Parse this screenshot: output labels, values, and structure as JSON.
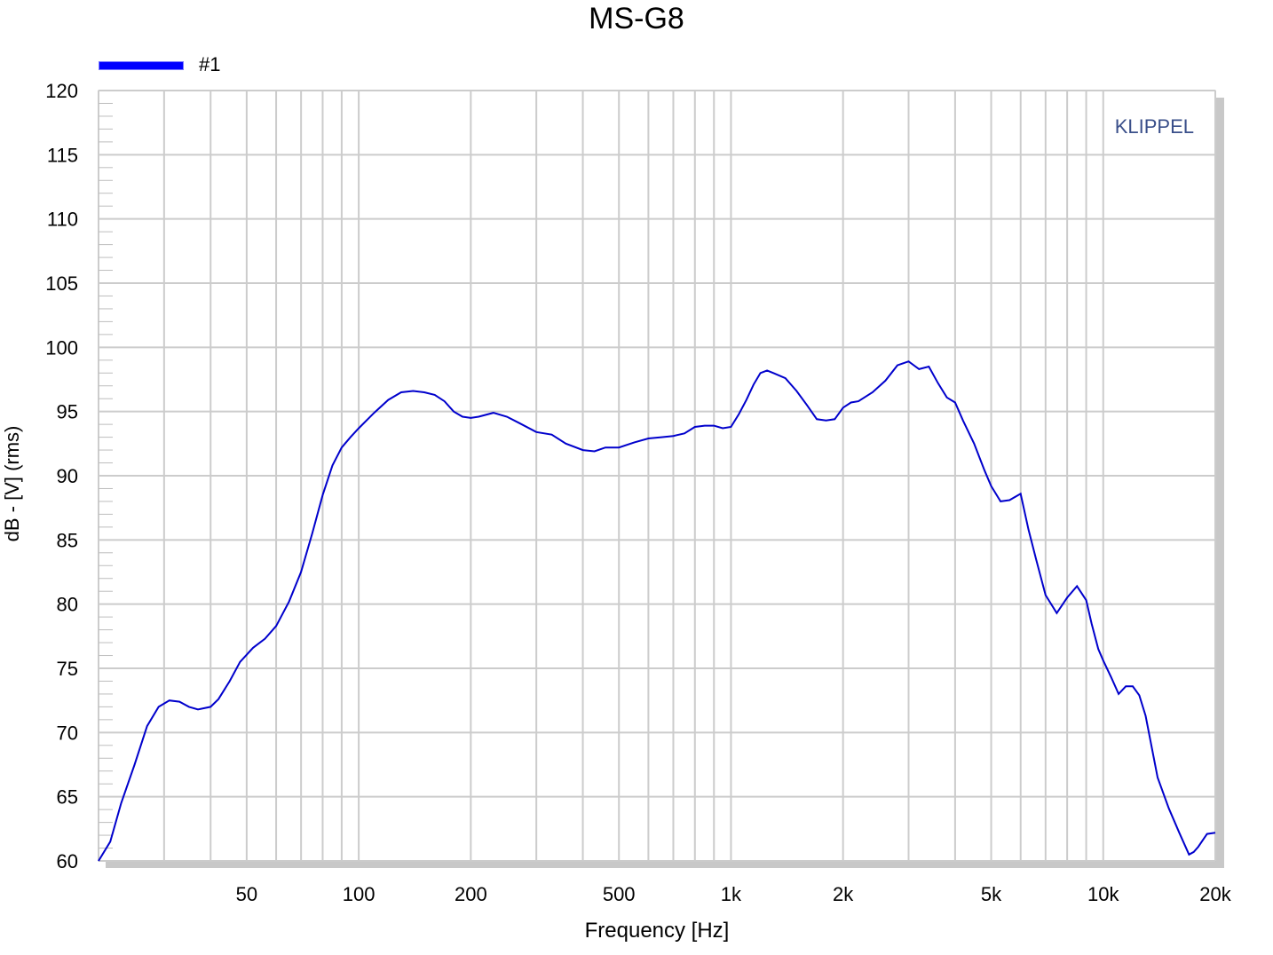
{
  "chart_data": {
    "type": "line",
    "title": "MS-G8",
    "xlabel": "Frequency [Hz]",
    "ylabel": "dB - [V]  (rms)",
    "x_scale": "log",
    "xlim": [
      20,
      20000
    ],
    "ylim": [
      60,
      120
    ],
    "x_ticks": [
      {
        "value": 50,
        "label": "50"
      },
      {
        "value": 100,
        "label": "100"
      },
      {
        "value": 200,
        "label": "200"
      },
      {
        "value": 500,
        "label": "500"
      },
      {
        "value": 1000,
        "label": "1k"
      },
      {
        "value": 2000,
        "label": "2k"
      },
      {
        "value": 5000,
        "label": "5k"
      },
      {
        "value": 10000,
        "label": "10k"
      },
      {
        "value": 20000,
        "label": "20k"
      }
    ],
    "y_ticks": [
      120,
      115,
      110,
      105,
      100,
      95,
      90,
      85,
      80,
      75,
      70,
      65,
      60
    ],
    "grid": true,
    "legend_position": "top-left",
    "watermark": "KLIPPEL",
    "series": [
      {
        "name": "#1",
        "color": "#0000cc",
        "x": [
          20,
          21.5,
          23,
          25,
          27,
          29,
          31,
          33,
          35,
          37,
          40,
          42,
          45,
          48,
          52,
          56,
          60,
          65,
          70,
          75,
          80,
          85,
          90,
          95,
          100,
          110,
          120,
          130,
          140,
          150,
          160,
          170,
          180,
          190,
          200,
          210,
          230,
          250,
          270,
          300,
          330,
          360,
          400,
          430,
          460,
          500,
          550,
          600,
          650,
          700,
          750,
          800,
          850,
          900,
          950,
          1000,
          1050,
          1100,
          1150,
          1200,
          1250,
          1300,
          1400,
          1500,
          1600,
          1700,
          1800,
          1900,
          2000,
          2100,
          2200,
          2400,
          2600,
          2800,
          3000,
          3200,
          3400,
          3600,
          3800,
          4000,
          4200,
          4500,
          4800,
          5000,
          5300,
          5600,
          6000,
          6300,
          6600,
          7000,
          7500,
          8000,
          8500,
          9000,
          9300,
          9700,
          10000,
          10500,
          11000,
          11500,
          12000,
          12500,
          13000,
          14000,
          15000,
          16000,
          17000,
          17500,
          18000,
          19000,
          20000
        ],
        "values": [
          60,
          61.5,
          64.5,
          67.5,
          70.5,
          72,
          72.5,
          72.4,
          72,
          71.8,
          72,
          72.6,
          74,
          75.5,
          76.6,
          77.3,
          78.3,
          80.2,
          82.5,
          85.5,
          88.5,
          90.8,
          92.2,
          93,
          93.7,
          94.9,
          95.9,
          96.5,
          96.6,
          96.5,
          96.3,
          95.8,
          95,
          94.6,
          94.5,
          94.6,
          94.9,
          94.6,
          94.1,
          93.4,
          93.2,
          92.5,
          92,
          91.9,
          92.2,
          92.2,
          92.6,
          92.9,
          93,
          93.1,
          93.3,
          93.8,
          93.9,
          93.9,
          93.7,
          93.8,
          94.8,
          95.9,
          97.1,
          98,
          98.2,
          98,
          97.6,
          96.6,
          95.5,
          94.4,
          94.3,
          94.4,
          95.3,
          95.7,
          95.8,
          96.5,
          97.4,
          98.6,
          98.9,
          98.3,
          98.5,
          97.2,
          96.1,
          95.7,
          94.3,
          92.5,
          90.4,
          89.2,
          88,
          88.1,
          88.6,
          85.8,
          83.5,
          80.7,
          79.3,
          80.5,
          81.4,
          80.3,
          78.5,
          76.5,
          75.6,
          74.3,
          73,
          73.6,
          73.6,
          72.9,
          71.3,
          66.5,
          64.1,
          62.2,
          60.5,
          60.7,
          61.1,
          62.1,
          62.2
        ]
      }
    ]
  }
}
